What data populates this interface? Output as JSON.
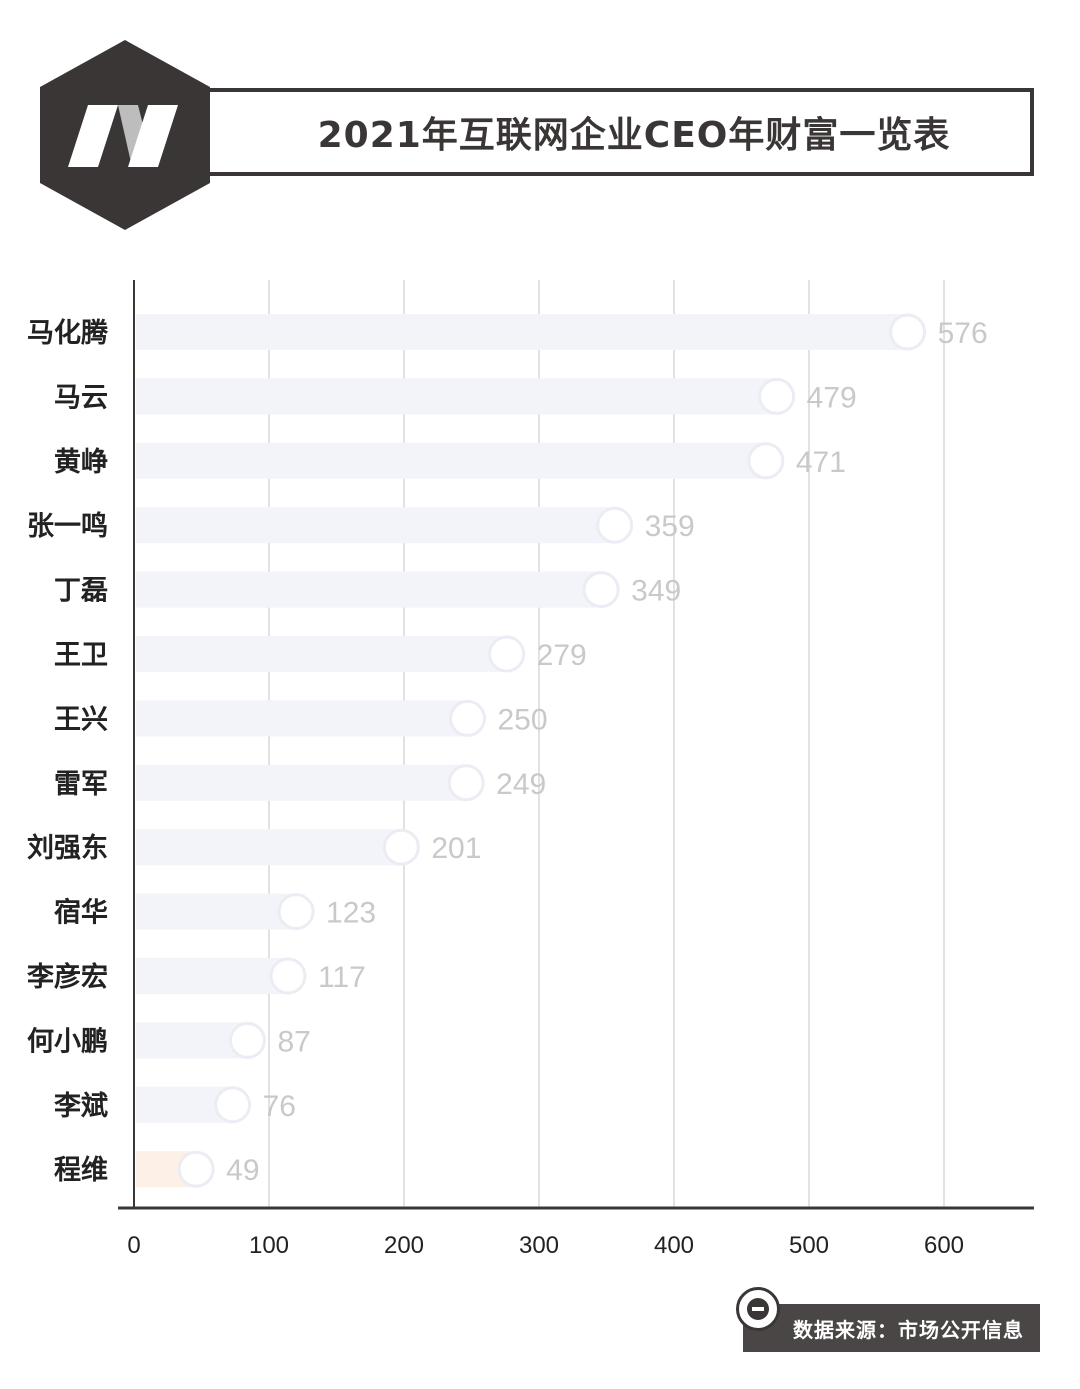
{
  "header": {
    "title": "2021年互联网企业CEO年财富一览表"
  },
  "source": {
    "text": "数据来源：市场公开信息",
    "icon": "minus-circle-icon"
  },
  "colors": {
    "dark": "#3a3636",
    "bar": "#f3f3fa",
    "bar_highlight": "#fdf0e6",
    "value_label": "#c9c9c9",
    "grid": "#d8d8d8"
  },
  "chart_data": {
    "type": "bar",
    "orientation": "horizontal",
    "categories": [
      "马化腾",
      "马云",
      "黄峥",
      "张一鸣",
      "丁磊",
      "王卫",
      "王兴",
      "雷军",
      "刘强东",
      "宿华",
      "李彦宏",
      "何小鹏",
      "李斌",
      "程维"
    ],
    "values": [
      576,
      479,
      471,
      359,
      349,
      279,
      250,
      249,
      201,
      123,
      117,
      87,
      76,
      49
    ],
    "xlim": [
      0,
      650
    ],
    "xticks": [
      0,
      100,
      200,
      300,
      400,
      500,
      600
    ],
    "grid": true,
    "title": "2021年互联网企业CEO年财富一览表",
    "xlabel": "",
    "ylabel": ""
  }
}
